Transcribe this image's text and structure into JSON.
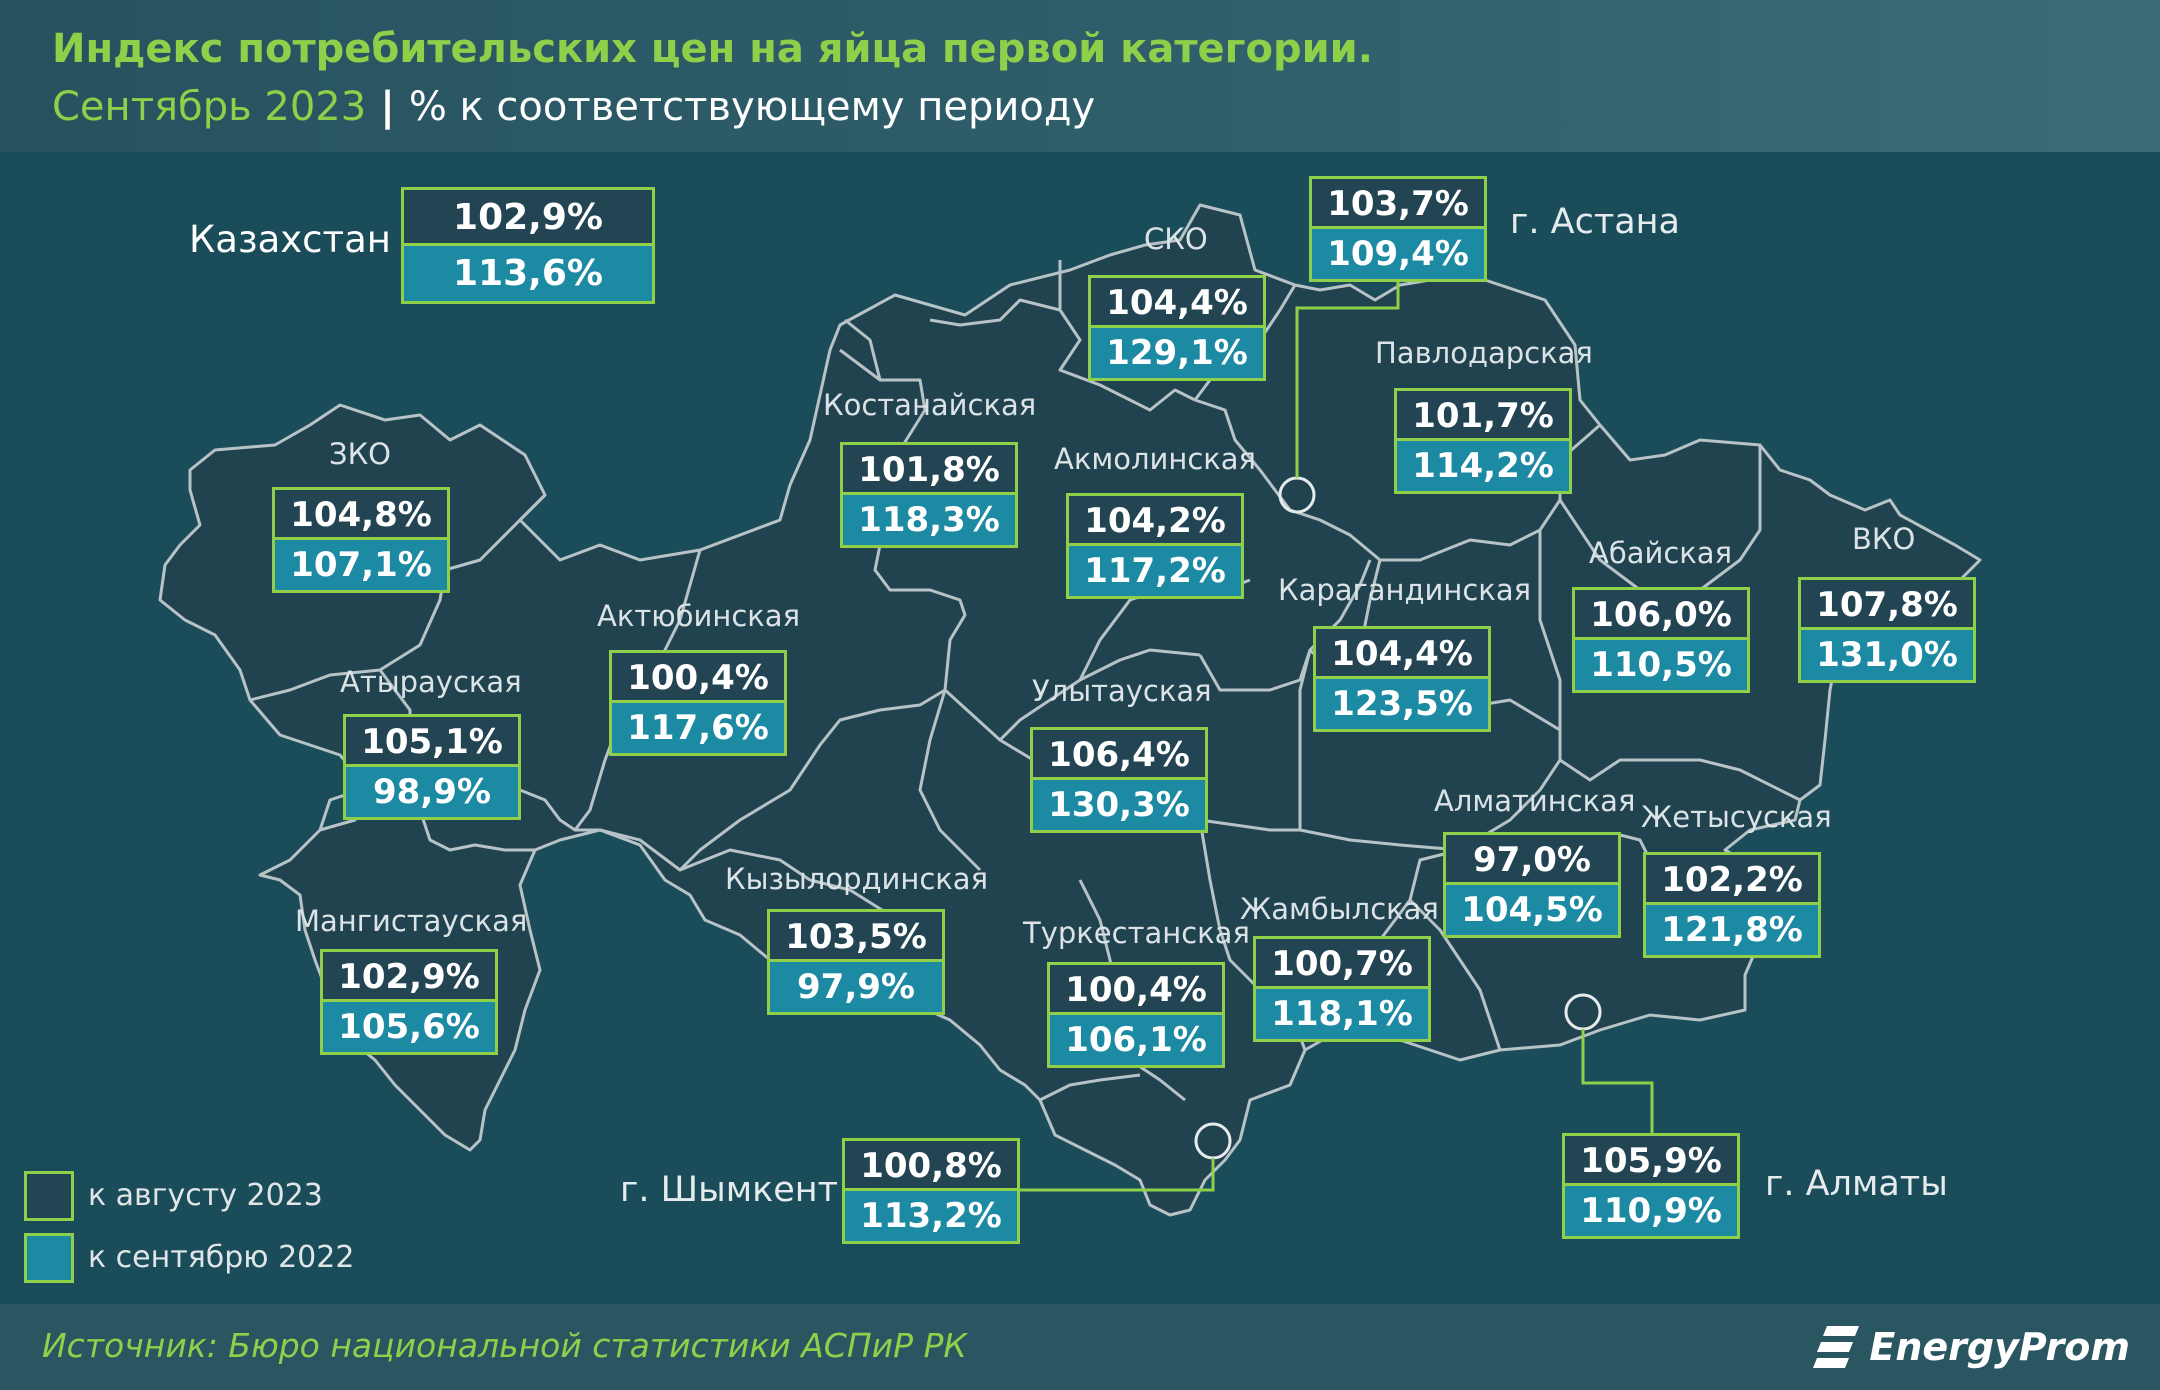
{
  "header": {
    "title": "Индекс потребительских цен на яйца первой категории.",
    "subtitle_date": "Сентябрь 2023",
    "subtitle_sep": "|",
    "subtitle_rest": "% к соответствующему периоду"
  },
  "country": {
    "name": "Казахстан",
    "v1": "102,9%",
    "v2": "113,6%"
  },
  "regions": [
    {
      "key": "sko",
      "name": "СКО",
      "v1": "104,4%",
      "v2": "129,1%"
    },
    {
      "key": "astana",
      "name": "г. Астана",
      "v1": "103,7%",
      "v2": "109,4%"
    },
    {
      "key": "pavlodar",
      "name": "Павлодарская",
      "v1": "101,7%",
      "v2": "114,2%"
    },
    {
      "key": "kostanay",
      "name": "Костанайская",
      "v1": "101,8%",
      "v2": "118,3%"
    },
    {
      "key": "akmola",
      "name": "Акмолинская",
      "v1": "104,2%",
      "v2": "117,2%"
    },
    {
      "key": "zko",
      "name": "ЗКО",
      "v1": "104,8%",
      "v2": "107,1%"
    },
    {
      "key": "aktobe",
      "name": "Актюбинская",
      "v1": "100,4%",
      "v2": "117,6%"
    },
    {
      "key": "abay",
      "name": "Абайская",
      "v1": "106,0%",
      "v2": "110,5%"
    },
    {
      "key": "vko",
      "name": "ВКО",
      "v1": "107,8%",
      "v2": "131,0%"
    },
    {
      "key": "karaganda",
      "name": "Карагандинская",
      "v1": "104,4%",
      "v2": "123,5%"
    },
    {
      "key": "atyrau",
      "name": "Атырауская",
      "v1": "105,1%",
      "v2": "98,9%"
    },
    {
      "key": "ulytau",
      "name": "Улытауская",
      "v1": "106,4%",
      "v2": "130,3%"
    },
    {
      "key": "almaty_reg",
      "name": "Алматинская",
      "v1": "97,0%",
      "v2": "104,5%"
    },
    {
      "key": "zhetisu",
      "name": "Жетысуская",
      "v1": "102,2%",
      "v2": "121,8%"
    },
    {
      "key": "kyzylorda",
      "name": "Кызылординская",
      "v1": "103,5%",
      "v2": "97,9%"
    },
    {
      "key": "mangystau",
      "name": "Мангистауская",
      "v1": "102,9%",
      "v2": "105,6%"
    },
    {
      "key": "turkestan",
      "name": "Туркестанская",
      "v1": "100,4%",
      "v2": "106,1%"
    },
    {
      "key": "zhambyl",
      "name": "Жамбылская",
      "v1": "100,7%",
      "v2": "118,1%"
    },
    {
      "key": "shymkent",
      "name": "г. Шымкент",
      "v1": "100,8%",
      "v2": "113,2%"
    },
    {
      "key": "almaty",
      "name": "г. Алматы",
      "v1": "105,9%",
      "v2": "110,9%"
    }
  ],
  "legend": {
    "item1": "к августу 2023",
    "item2": "к сентябрю 2022",
    "color1": "#234452",
    "color2": "#1d8aa3"
  },
  "colors": {
    "accent": "#8fd04a",
    "background": "#1e4a57",
    "region_fill": "#21434f"
  },
  "footer": {
    "source": "Источник: Бюро национальной статистики АСПиР РК",
    "logo": "EnergyProm"
  }
}
